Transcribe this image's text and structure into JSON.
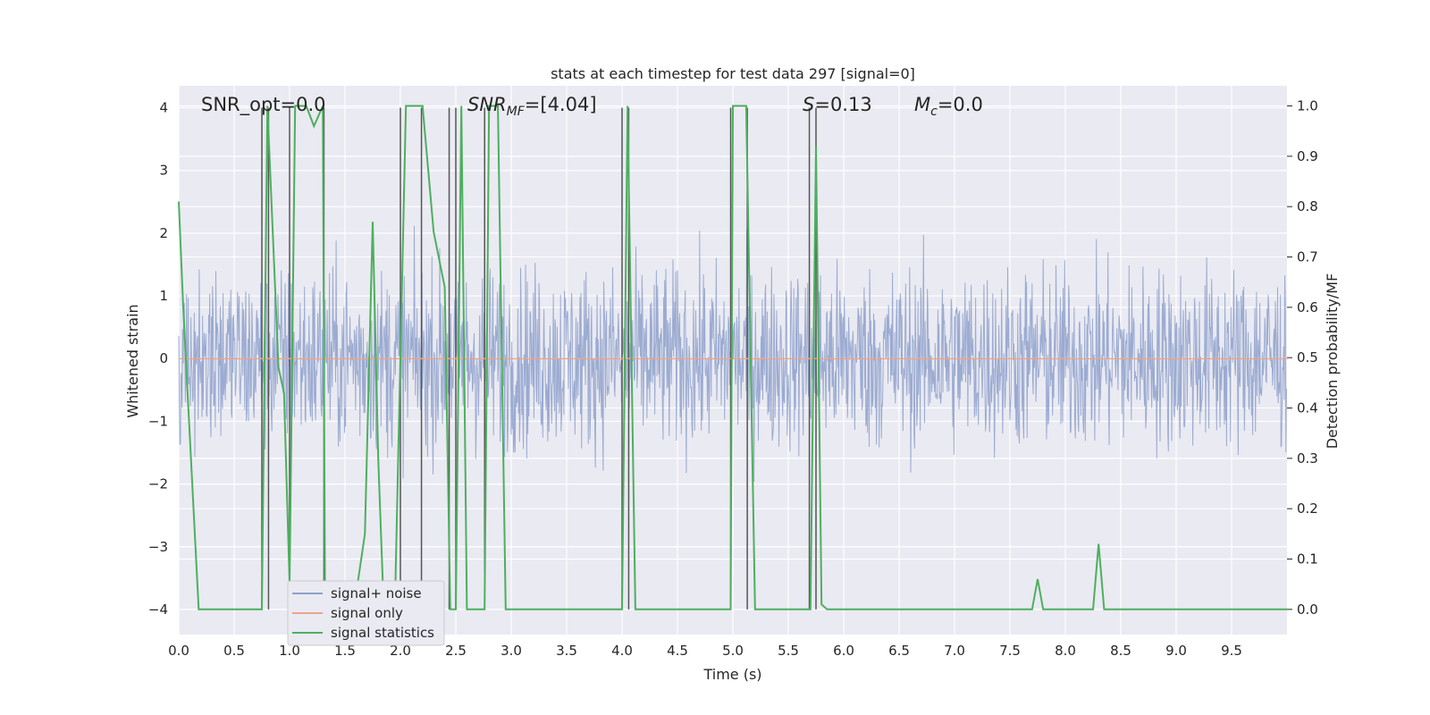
{
  "chart_data": {
    "type": "line",
    "title": "stats at each timestep for test data 297 [signal=0]",
    "xlabel": "Time (s)",
    "ylabel_left": "Whitened strain",
    "ylabel_right": "Detection probability/MF",
    "xlim": [
      0.0,
      10.0
    ],
    "ylim_left": [
      -4.4,
      4.35
    ],
    "ylim_right": [
      -0.05,
      1.04
    ],
    "x_ticks": [
      0.0,
      0.5,
      1.0,
      1.5,
      2.0,
      2.5,
      3.0,
      3.5,
      4.0,
      4.5,
      5.0,
      5.5,
      6.0,
      6.5,
      7.0,
      7.5,
      8.0,
      8.5,
      9.0,
      9.5
    ],
    "x_tick_labels": [
      "0.0",
      "0.5",
      "1.0",
      "1.5",
      "2.0",
      "2.5",
      "3.0",
      "3.5",
      "4.0",
      "4.5",
      "5.0",
      "5.5",
      "6.0",
      "6.5",
      "7.0",
      "7.5",
      "8.0",
      "8.5",
      "9.0",
      "9.5"
    ],
    "y_left_ticks": [
      4,
      3,
      2,
      1,
      0,
      -1,
      -2,
      -3,
      -4
    ],
    "y_left_tick_labels": [
      "4",
      "3",
      "2",
      "1",
      "0",
      "−1",
      "−2",
      "−3",
      "−4"
    ],
    "y_right_ticks": [
      1.0,
      0.9,
      0.8,
      0.7,
      0.6,
      0.5,
      0.4,
      0.3,
      0.2,
      0.1,
      0.0
    ],
    "y_right_tick_labels": [
      "1.0",
      "0.9",
      "0.8",
      "0.7",
      "0.6",
      "0.5",
      "0.4",
      "0.3",
      "0.2",
      "0.1",
      "0.0"
    ],
    "grid": true,
    "annotations": {
      "snr_opt": "SNR_opt=0.0",
      "snr_mf_main": "SNR",
      "snr_mf_sub": "MF",
      "snr_mf_value": "=[4.04]",
      "s_main": "S",
      "s_value": "=0.13",
      "mc_main": "M",
      "mc_sub": "c",
      "mc_value": "=0.0"
    },
    "legend": {
      "placement": "lower-left",
      "entries": [
        "signal+ noise",
        "signal only",
        "signal statistics"
      ]
    },
    "colors": {
      "noise": "#8da0cb",
      "signal": "#e8a58b",
      "statistics": "#4daf5e",
      "markers": "#555555",
      "background": "#eaeaf2",
      "grid": "#ffffff"
    },
    "series": [
      {
        "name": "signal+ noise",
        "kind": "noisy strain, roughly gaussian",
        "envelope_typical": [
          -1.6,
          1.6
        ],
        "peak_range": [
          -3.85,
          3.4
        ]
      },
      {
        "name": "signal only",
        "x": [
          0.0,
          10.0
        ],
        "y": [
          0.0,
          0.0
        ]
      },
      {
        "name": "signal statistics",
        "x": [
          0.0,
          0.04,
          0.18,
          0.75,
          0.8,
          0.9,
          0.95,
          1.0,
          1.05,
          1.06,
          1.15,
          1.22,
          1.3,
          1.32,
          1.4,
          1.48,
          1.58,
          1.68,
          1.75,
          1.8,
          1.85,
          1.95,
          2.05,
          2.08,
          2.2,
          2.3,
          2.4,
          2.45,
          2.5,
          2.55,
          2.6,
          2.7,
          2.76,
          2.8,
          2.84,
          2.88,
          2.95,
          3.0,
          3.5,
          4.0,
          4.05,
          4.12,
          4.5,
          4.98,
          5.0,
          5.05,
          5.12,
          5.2,
          5.25,
          5.7,
          5.75,
          5.8,
          5.85,
          5.9,
          6.5,
          7.0,
          7.7,
          7.75,
          7.8,
          8.25,
          8.3,
          8.35,
          9.0,
          9.5,
          10.0
        ],
        "y": [
          0.81,
          0.6,
          0.0,
          0.0,
          1.0,
          0.48,
          0.43,
          0.05,
          1.0,
          1.0,
          1.0,
          0.96,
          1.0,
          0.0,
          0.0,
          0.0,
          0.0,
          0.15,
          0.77,
          0.3,
          0.0,
          0.0,
          1.0,
          1.0,
          1.0,
          0.75,
          0.64,
          0.0,
          0.0,
          1.0,
          0.0,
          0.0,
          0.0,
          1.0,
          1.0,
          1.0,
          0.0,
          0.0,
          0.0,
          0.0,
          1.0,
          0.0,
          0.0,
          0.0,
          1.0,
          1.0,
          1.0,
          0.0,
          0.0,
          0.0,
          0.92,
          0.01,
          0.0,
          0.0,
          0.0,
          0.0,
          0.0,
          0.06,
          0.0,
          0.0,
          0.13,
          0.0,
          0.0,
          0.0,
          0.0
        ]
      }
    ],
    "marker_lines_x": [
      0.75,
      0.81,
      1.0,
      1.31,
      2.0,
      2.19,
      2.44,
      2.5,
      2.76,
      4.0,
      4.06,
      4.98,
      5.13,
      5.69,
      5.75
    ]
  }
}
